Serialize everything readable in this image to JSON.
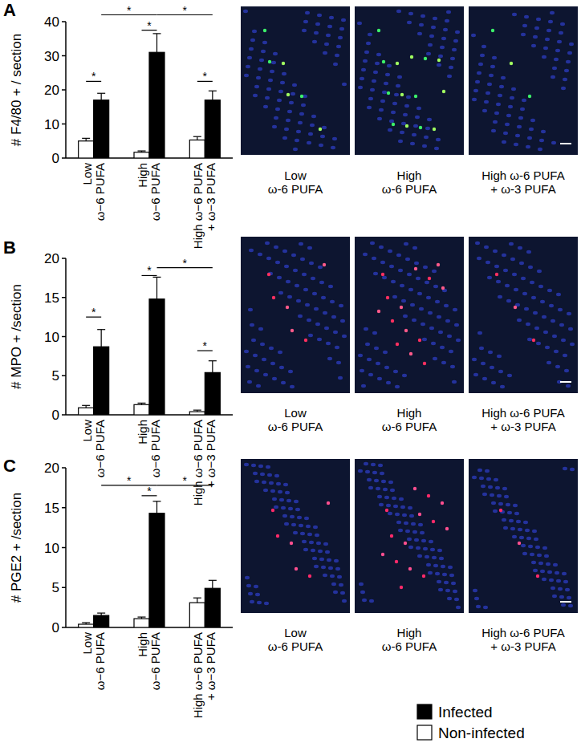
{
  "chart_data": [
    {
      "type": "bar",
      "title": "A",
      "y_label": "# F4/80 + / section",
      "categories": [
        "Low ω−6 PUFA",
        "High ω−6 PUFA",
        "High ω−6 PUFA + ω−3 PUFA"
      ],
      "series": [
        {
          "name": "Non-infected",
          "color": "#ffffff",
          "values": [
            5,
            1.7,
            5.3
          ],
          "errors": [
            0.8,
            0.4,
            1
          ]
        },
        {
          "name": "Infected",
          "color": "#000000",
          "values": [
            17,
            31,
            17
          ],
          "errors": [
            2,
            5.5,
            2.7
          ]
        }
      ],
      "ylim": [
        0,
        40
      ],
      "yticks": [
        0,
        10,
        20,
        30,
        40
      ],
      "annotations": [
        {
          "from_series": 0,
          "from_category": 0,
          "to_series": 1,
          "to_category": 0,
          "y": 22.5,
          "label": "*"
        },
        {
          "from_series": 0,
          "from_category": 1,
          "to_series": 1,
          "to_category": 1,
          "y": 37.5,
          "label": "*"
        },
        {
          "from_series": 0,
          "from_category": 2,
          "to_series": 1,
          "to_category": 2,
          "y": 22.5,
          "label": "*"
        },
        {
          "from_series": 1,
          "from_category": 0,
          "to_series": 1,
          "to_category": 1,
          "y": 42,
          "label": "*"
        },
        {
          "from_series": 1,
          "from_category": 1,
          "to_series": 1,
          "to_category": 2,
          "y": 42,
          "label": "*"
        }
      ],
      "image_captions": [
        "Low ω-6 PUFA",
        "High ω-6 PUFA",
        "High ω-6 PUFA + ω-3 PUFA"
      ]
    },
    {
      "type": "bar",
      "title": "B",
      "y_label": "# MPO + /section",
      "categories": [
        "Low ω−6 PUFA",
        "High ω−6 PUFA",
        "High ω−6 PUFA + ω−3 PUFA"
      ],
      "series": [
        {
          "name": "Non-infected",
          "color": "#ffffff",
          "values": [
            0.9,
            1.3,
            0.4
          ],
          "errors": [
            0.3,
            0.2,
            0.2
          ]
        },
        {
          "name": "Infected",
          "color": "#000000",
          "values": [
            8.7,
            14.8,
            5.4
          ],
          "errors": [
            2.2,
            2.8,
            1.5
          ]
        }
      ],
      "ylim": [
        0,
        20
      ],
      "yticks": [
        0,
        5,
        10,
        15,
        20
      ],
      "annotations": [
        {
          "from_series": 0,
          "from_category": 0,
          "to_series": 1,
          "to_category": 0,
          "y": 12.5,
          "label": "*"
        },
        {
          "from_series": 0,
          "from_category": 1,
          "to_series": 1,
          "to_category": 1,
          "y": 17.8,
          "label": "*"
        },
        {
          "from_series": 0,
          "from_category": 2,
          "to_series": 1,
          "to_category": 2,
          "y": 8.2,
          "label": "*"
        },
        {
          "from_series": 1,
          "from_category": 1,
          "to_series": 1,
          "to_category": 2,
          "y": 18.8,
          "label": "*"
        }
      ],
      "image_captions": [
        "Low ω-6 PUFA",
        "High ω-6 PUFA",
        "High ω-6 PUFA + ω-3 PUFA"
      ]
    },
    {
      "type": "bar",
      "title": "C",
      "y_label": "# PGE2 + /section",
      "categories": [
        "Low ω−6 PUFA",
        "High ω−6 PUFA",
        "High ω−6 PUFA + ω−3 PUFA"
      ],
      "series": [
        {
          "name": "Non-infected",
          "color": "#ffffff",
          "values": [
            0.4,
            1.1,
            3.1
          ],
          "errors": [
            0.2,
            0.2,
            0.6
          ]
        },
        {
          "name": "Infected",
          "color": "#000000",
          "values": [
            1.5,
            14.3,
            4.9
          ],
          "errors": [
            0.3,
            1.5,
            1
          ]
        }
      ],
      "ylim": [
        0,
        20
      ],
      "yticks": [
        0,
        5,
        10,
        15,
        20
      ],
      "annotations": [
        {
          "from_series": 0,
          "from_category": 1,
          "to_series": 1,
          "to_category": 1,
          "y": 16.5,
          "label": "*"
        },
        {
          "from_series": 1,
          "from_category": 0,
          "to_series": 1,
          "to_category": 1,
          "y": 17.8,
          "label": "*"
        },
        {
          "from_series": 1,
          "from_category": 1,
          "to_series": 1,
          "to_category": 2,
          "y": 17.8,
          "label": "*"
        }
      ],
      "legend": "bottom right",
      "image_captions": [
        "Low ω-6 PUFA",
        "High ω-6 PUFA",
        "High ω-6 PUFA + ω-3 PUFA"
      ]
    }
  ]
}
